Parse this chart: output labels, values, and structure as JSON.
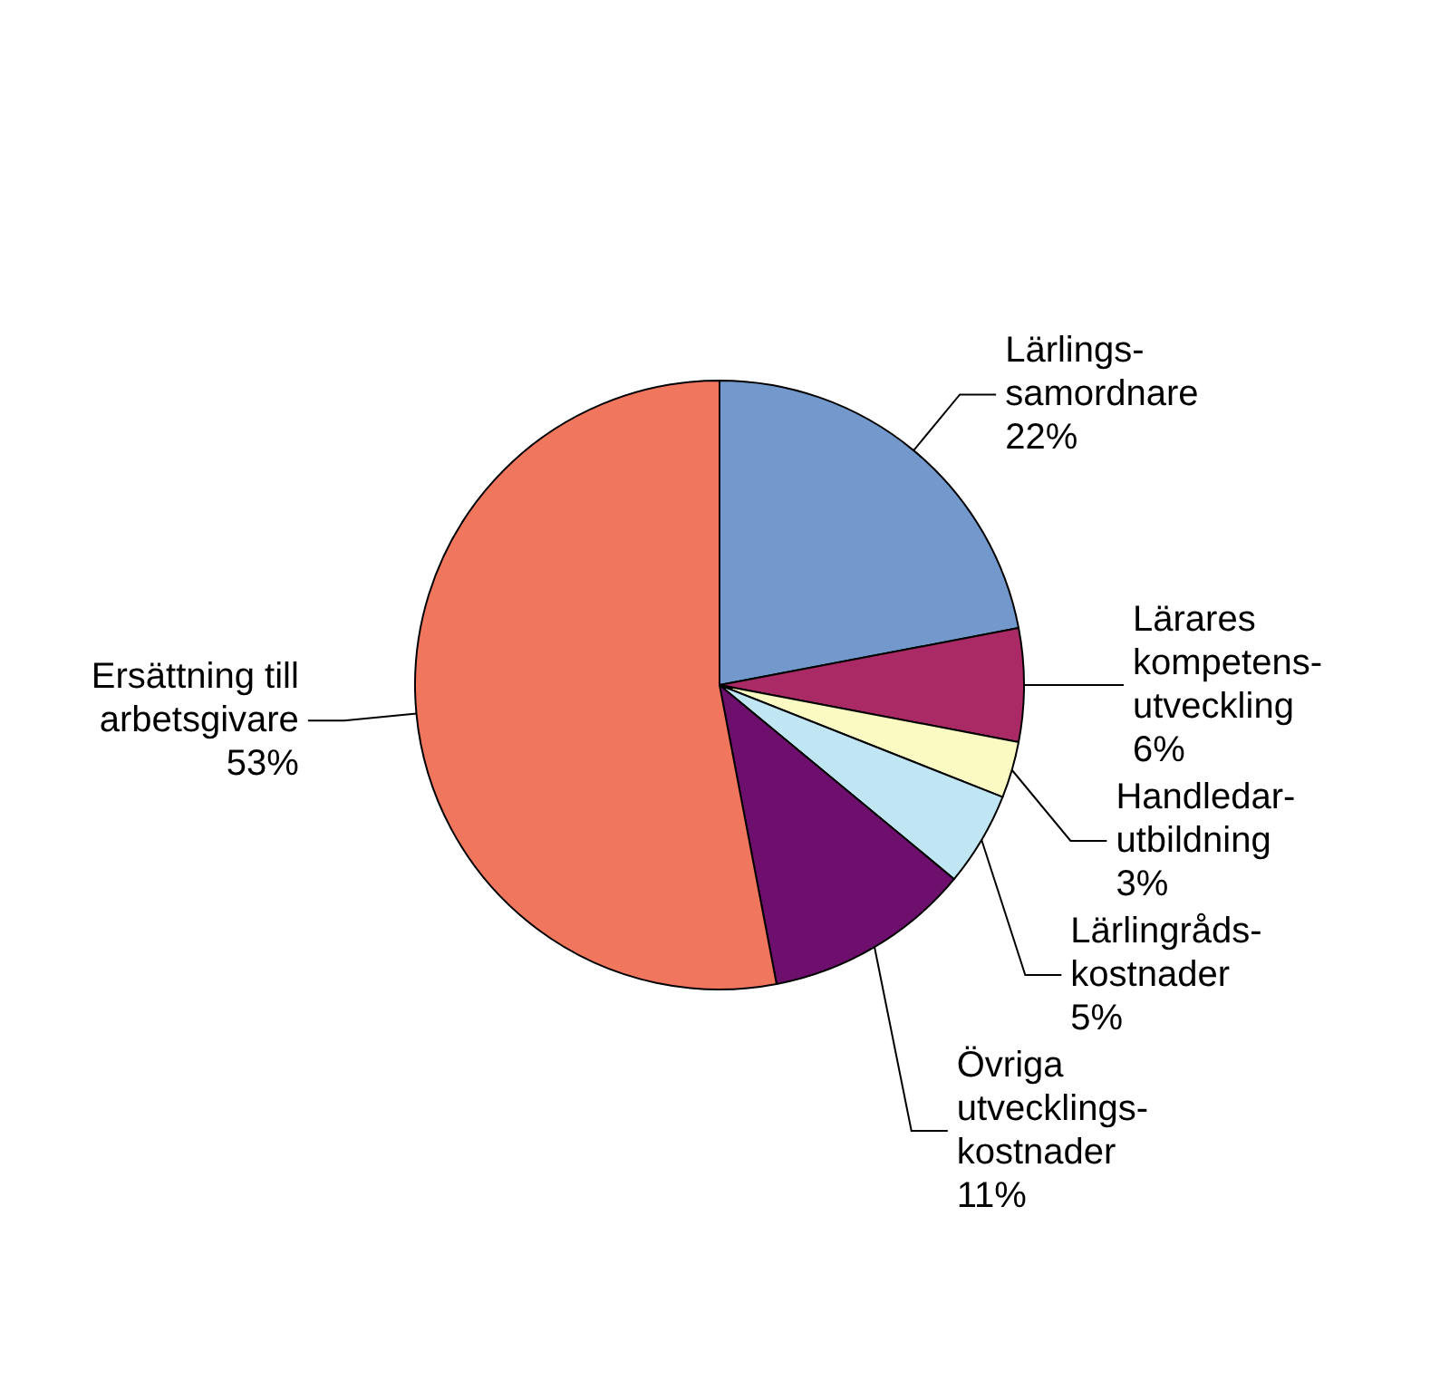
{
  "chart_data": {
    "type": "pie",
    "categories": [
      "Lärlings-\nsamordnare",
      "Lärares\nkompetens-\nutveckling",
      "Handledar-\nutbildning",
      "Lärlingråds-\nkostnader",
      "Övriga\nutvecklings-\nkostnader",
      "Ersättning till\narbetsgivare"
    ],
    "values": [
      22,
      6,
      3,
      5,
      11,
      53
    ],
    "value_labels": [
      "22%",
      "6%",
      "3%",
      "5%",
      "11%",
      "53%"
    ],
    "colors": [
      "#7298cc",
      "#aa2a66",
      "#fafac2",
      "#bfe6f2",
      "#6e0f6e",
      "#f0765e"
    ],
    "legend": false
  }
}
